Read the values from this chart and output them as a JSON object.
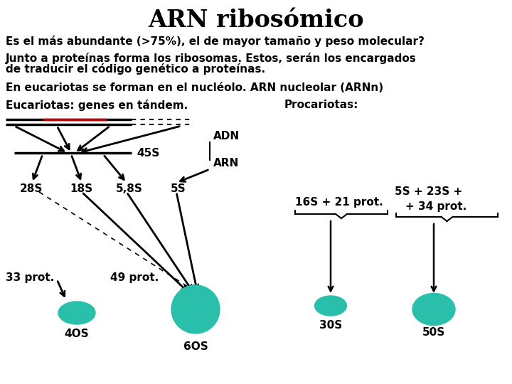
{
  "title": "ARN ribosómico",
  "line1": "Es el más abundante (>75%), el de mayor tamaño y peso molecular?",
  "line2a": "Junto a proteínas forma los ribosomas. Estos, serán los encargados",
  "line2b": "de traducir el código genético a proteínas.",
  "line3": "En eucariotas se forman en el nucléolo. ARN nucleolar (ARNn)",
  "euca_label": "Eucariotas: genes en tándem.",
  "proca_label": "Procariotas:",
  "background": "#ffffff",
  "text_color": "#000000",
  "teal_color": "#2abfaa",
  "red_color": "#cc0000",
  "title_fs": 24,
  "body_fs": 11,
  "diagram_fs": 11
}
